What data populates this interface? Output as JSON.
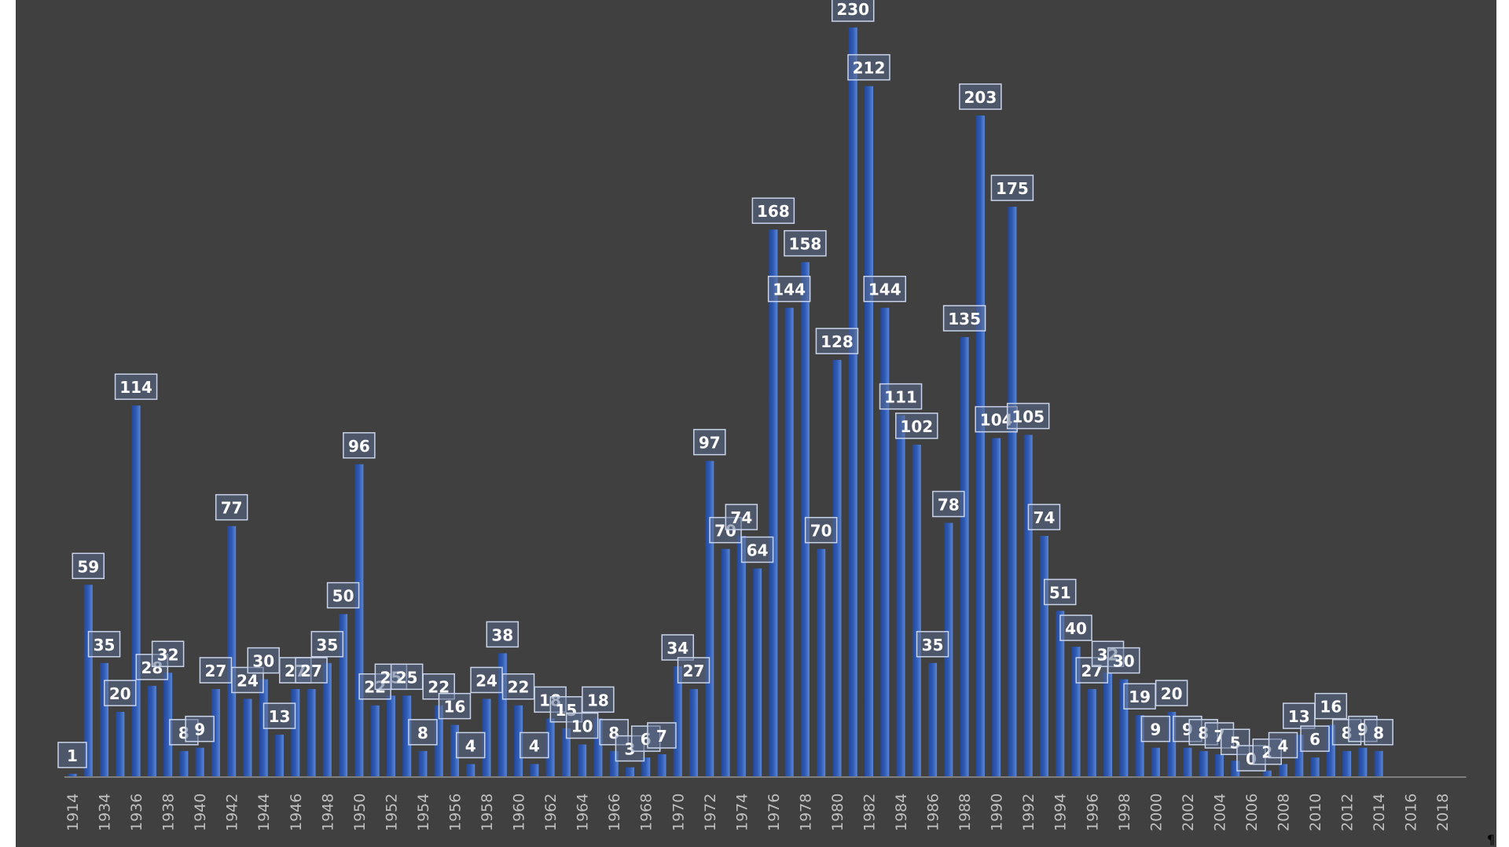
{
  "chart_data": {
    "type": "bar",
    "title": "",
    "xlabel": "",
    "ylabel": "",
    "ylim": [
      0,
      230
    ],
    "grid": false,
    "legend": "none",
    "bar_color": "#2f5bb5",
    "background_color": "#404040",
    "categories": [
      "1914",
      "",
      "1934",
      "",
      "1936",
      "",
      "1938",
      "",
      "1940",
      "",
      "1942",
      "",
      "1944",
      "",
      "1946",
      "",
      "1948",
      "",
      "1950",
      "",
      "1952",
      "",
      "1954",
      "",
      "1956",
      "",
      "1958",
      "",
      "1960",
      "",
      "1962",
      "",
      "1964",
      "",
      "1966",
      "",
      "1968",
      "",
      "1970",
      "",
      "1972",
      "",
      "1974",
      "",
      "1976",
      "",
      "1978",
      "",
      "1980",
      "",
      "1982",
      "",
      "1984",
      "",
      "1986",
      "",
      "1988",
      "",
      "1990",
      "",
      "1992",
      "",
      "1994",
      "",
      "1996",
      "",
      "1998",
      "",
      "2000",
      "",
      "2002",
      "",
      "2004",
      "",
      "2006",
      "",
      "2008",
      "",
      "2010",
      "",
      "2012",
      "",
      "2014",
      "",
      "2016",
      "",
      "2018",
      ""
    ],
    "values": [
      1,
      59,
      35,
      20,
      114,
      28,
      32,
      8,
      9,
      27,
      77,
      24,
      30,
      13,
      27,
      27,
      35,
      50,
      96,
      22,
      25,
      25,
      8,
      22,
      16,
      4,
      24,
      38,
      22,
      4,
      18,
      15,
      10,
      18,
      8,
      3,
      6,
      7,
      34,
      27,
      97,
      70,
      74,
      64,
      168,
      144,
      158,
      70,
      128,
      230,
      212,
      144,
      111,
      102,
      35,
      78,
      135,
      203,
      104,
      175,
      105,
      74,
      51,
      40,
      27,
      32,
      30,
      19,
      9,
      20,
      9,
      8,
      7,
      5,
      0,
      2,
      4,
      13,
      6,
      16,
      8,
      9,
      8,
      null,
      null,
      null,
      null,
      null
    ]
  }
}
